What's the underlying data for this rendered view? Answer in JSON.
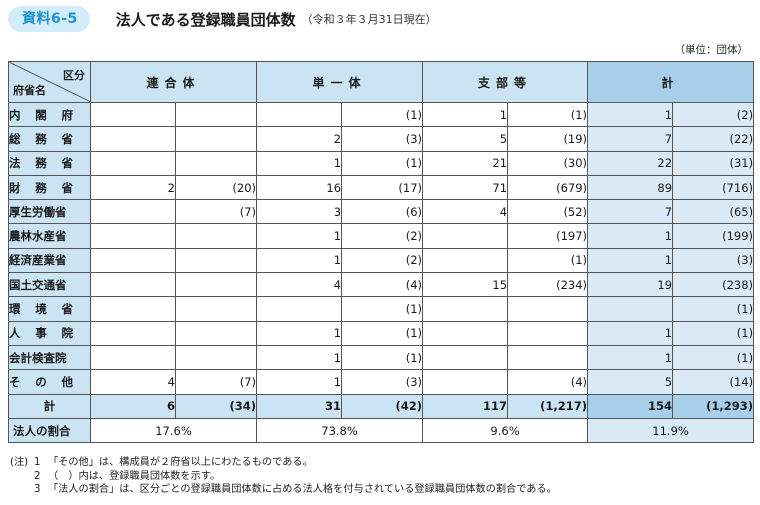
{
  "header": {
    "badge": "資料6-5",
    "title": "法人である登録職員団体数",
    "subtitle": "（令和３年３月31日現在）",
    "unit": "（単位：団体）"
  },
  "table": {
    "corner_top": "区分",
    "corner_bottom": "府省名",
    "columns": [
      "連合体",
      "単一体",
      "支部等",
      "計"
    ],
    "rows": [
      {
        "name": "内閣府",
        "cells": [
          [
            "",
            ""
          ],
          [
            "",
            "(1)"
          ],
          [
            "1",
            "(1)"
          ],
          [
            "1",
            "(2)"
          ]
        ]
      },
      {
        "name": "総務省",
        "cells": [
          [
            "",
            ""
          ],
          [
            "2",
            "(3)"
          ],
          [
            "5",
            "(19)"
          ],
          [
            "7",
            "(22)"
          ]
        ]
      },
      {
        "name": "法務省",
        "cells": [
          [
            "",
            ""
          ],
          [
            "1",
            "(1)"
          ],
          [
            "21",
            "(30)"
          ],
          [
            "22",
            "(31)"
          ]
        ]
      },
      {
        "name": "財務省",
        "cells": [
          [
            "2",
            "(20)"
          ],
          [
            "16",
            "(17)"
          ],
          [
            "71",
            "(679)"
          ],
          [
            "89",
            "(716)"
          ]
        ]
      },
      {
        "name": "厚生労働省",
        "cells": [
          [
            "",
            "(7)"
          ],
          [
            "3",
            "(6)"
          ],
          [
            "4",
            "(52)"
          ],
          [
            "7",
            "(65)"
          ]
        ]
      },
      {
        "name": "農林水産省",
        "cells": [
          [
            "",
            ""
          ],
          [
            "1",
            "(2)"
          ],
          [
            "",
            "(197)"
          ],
          [
            "1",
            "(199)"
          ]
        ]
      },
      {
        "name": "経済産業省",
        "cells": [
          [
            "",
            ""
          ],
          [
            "1",
            "(2)"
          ],
          [
            "",
            "(1)"
          ],
          [
            "1",
            "(3)"
          ]
        ]
      },
      {
        "name": "国土交通省",
        "cells": [
          [
            "",
            ""
          ],
          [
            "4",
            "(4)"
          ],
          [
            "15",
            "(234)"
          ],
          [
            "19",
            "(238)"
          ]
        ]
      },
      {
        "name": "環境省",
        "cells": [
          [
            "",
            ""
          ],
          [
            "",
            "(1)"
          ],
          [
            "",
            ""
          ],
          [
            "",
            "(1)"
          ]
        ]
      },
      {
        "name": "人事院",
        "cells": [
          [
            "",
            ""
          ],
          [
            "1",
            "(1)"
          ],
          [
            "",
            ""
          ],
          [
            "1",
            "(1)"
          ]
        ]
      },
      {
        "name": "会計検査院",
        "cells": [
          [
            "",
            ""
          ],
          [
            "1",
            "(1)"
          ],
          [
            "",
            ""
          ],
          [
            "1",
            "(1)"
          ]
        ]
      },
      {
        "name": "その他",
        "cells": [
          [
            "4",
            "(7)"
          ],
          [
            "1",
            "(3)"
          ],
          [
            "",
            "(4)"
          ],
          [
            "5",
            "(14)"
          ]
        ]
      }
    ],
    "total_row": {
      "name": "計",
      "cells": [
        [
          "6",
          "(34)"
        ],
        [
          "31",
          "(42)"
        ],
        [
          "117",
          "(1,217)"
        ],
        [
          "154",
          "(1,293)"
        ]
      ]
    },
    "ratio_row": {
      "name": "法人の割合",
      "values": [
        "17.6%",
        "73.8%",
        "9.6%",
        "11.9%"
      ]
    }
  },
  "notes": {
    "lead": "(注)",
    "items": [
      {
        "num": "1",
        "text": "「その他」は、構成員が２府省以上にわたるものである。"
      },
      {
        "num": "2",
        "text": "（　）内は、登録職員団体数を示す。"
      },
      {
        "num": "3",
        "text": "「法人の割合」は、区分ごとの登録職員団体数に占める法人格を付与されている登録職員団体数の割合である。"
      }
    ]
  },
  "colors": {
    "badge_bg": "#d3ecfa",
    "badge_text": "#1e93d2",
    "header_bg": "#cbe4f3",
    "total_bg": "#a8cfea",
    "total_col_bg": "#dbeaf7"
  }
}
